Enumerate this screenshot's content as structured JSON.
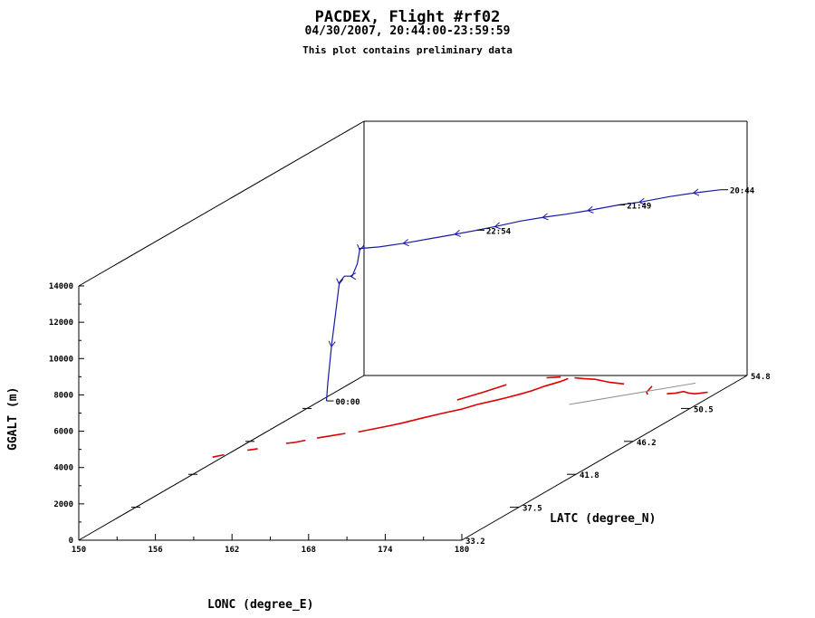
{
  "header": {
    "title": "PACDEX, Flight #rf02",
    "subtitle": "04/30/2007, 20:44:00-23:59:59",
    "note": "This plot contains preliminary data"
  },
  "colors": {
    "track": "#1a1aa6",
    "ground_track": "#dd0000",
    "grey_segment": "#909090",
    "axes": "#000000"
  },
  "chart_data": {
    "type": "3d-line",
    "axes": {
      "x": {
        "label": "LONC (degree_E)",
        "range": [
          150,
          180
        ],
        "ticks": [
          "150",
          "156",
          "162",
          "168",
          "174",
          "180"
        ]
      },
      "y": {
        "label": "LATC (degree_N)",
        "range": [
          33.2,
          54.8
        ],
        "ticks": [
          "33.2",
          "37.5",
          "41.8",
          "46.2",
          "50.5",
          "54.8"
        ]
      },
      "z": {
        "label": "GGALT (m)",
        "range": [
          0,
          14000
        ],
        "ticks": [
          "0",
          "2000",
          "4000",
          "6000",
          "8000",
          "10000",
          "12000",
          "14000"
        ]
      }
    },
    "track": [
      {
        "lon": 179.6,
        "lat": 53.2,
        "alt": 10900
      },
      {
        "lon": 178.0,
        "lat": 52.8,
        "alt": 10900
      },
      {
        "lon": 176.5,
        "lat": 52.3,
        "alt": 10900
      },
      {
        "lon": 175.0,
        "lat": 51.6,
        "alt": 10900
      },
      {
        "lon": 173.6,
        "lat": 51.2,
        "alt": 10900
      },
      {
        "lon": 172.1,
        "lat": 50.5,
        "alt": 10900
      },
      {
        "lon": 170.8,
        "lat": 50.0,
        "alt": 10900
      },
      {
        "lon": 169.5,
        "lat": 49.6,
        "alt": 10900
      },
      {
        "lon": 168.2,
        "lat": 49.1,
        "alt": 10900
      },
      {
        "lon": 167.0,
        "lat": 48.4,
        "alt": 10900
      },
      {
        "lon": 166.0,
        "lat": 47.9,
        "alt": 10900
      },
      {
        "lon": 164.9,
        "lat": 47.4,
        "alt": 10900
      },
      {
        "lon": 163.5,
        "lat": 46.8,
        "alt": 10900
      },
      {
        "lon": 162.1,
        "lat": 46.2,
        "alt": 10900
      },
      {
        "lon": 160.6,
        "lat": 45.7,
        "alt": 10900
      },
      {
        "lon": 159.3,
        "lat": 45.5,
        "alt": 10900
      },
      {
        "lon": 159.2,
        "lat": 45.4,
        "alt": 10100
      },
      {
        "lon": 159.0,
        "lat": 45.2,
        "alt": 9500
      },
      {
        "lon": 158.4,
        "lat": 45.2,
        "alt": 9500
      },
      {
        "lon": 158.1,
        "lat": 45.1,
        "alt": 9200
      },
      {
        "lon": 157.9,
        "lat": 45.0,
        "alt": 7500
      },
      {
        "lon": 157.6,
        "lat": 45.0,
        "alt": 5800
      },
      {
        "lon": 157.3,
        "lat": 45.0,
        "alt": 3700
      },
      {
        "lon": 157.4,
        "lat": 44.8,
        "alt": 2800
      }
    ],
    "time_labels": [
      {
        "text": "20:44",
        "lon": 179.6,
        "lat": 53.2,
        "alt": 10900
      },
      {
        "text": "21:49",
        "lon": 173.6,
        "lat": 51.2,
        "alt": 10900
      },
      {
        "text": "22:54",
        "lon": 166.0,
        "lat": 47.9,
        "alt": 10900
      },
      {
        "text": "00:00",
        "lon": 157.4,
        "lat": 44.8,
        "alt": 2800
      }
    ],
    "ground_track": [
      [
        [
          179.2,
          52.6
        ],
        [
          178.4,
          52.4
        ],
        [
          177.8,
          52.5
        ],
        [
          177.2,
          52.7
        ],
        [
          176.8,
          52.5
        ],
        [
          176.2,
          52.4
        ]
      ],
      [
        [
          174.8,
          52.3
        ],
        [
          174.4,
          52.6
        ],
        [
          174.0,
          53.4
        ]
      ],
      [
        [
          171.5,
          53.7
        ],
        [
          170.2,
          53.9
        ],
        [
          168.6,
          54.3
        ],
        [
          167.6,
          54.4
        ],
        [
          166.8,
          54.5
        ]
      ],
      [
        [
          165.6,
          54.6
        ],
        [
          164.6,
          54.5
        ]
      ],
      [
        [
          166.4,
          54.4
        ],
        [
          166.2,
          54.0
        ],
        [
          165.6,
          53.4
        ],
        [
          165.2,
          52.8
        ],
        [
          164.8,
          52.4
        ],
        [
          164.2,
          51.9
        ],
        [
          163.6,
          51.5
        ],
        [
          162.8,
          51.0
        ],
        [
          162.2,
          50.4
        ],
        [
          161.2,
          49.8
        ],
        [
          160.3,
          49.2
        ],
        [
          159.5,
          48.6
        ],
        [
          158.8,
          48.2
        ],
        [
          158.0,
          47.8
        ],
        [
          157.2,
          47.4
        ]
      ],
      [
        [
          162.4,
          53.6
        ],
        [
          161.6,
          52.6
        ],
        [
          160.6,
          51.6
        ]
      ],
      [
        [
          156.4,
          47.2
        ],
        [
          155.6,
          46.9
        ],
        [
          154.8,
          46.6
        ]
      ],
      [
        [
          154.2,
          46.3
        ],
        [
          153.6,
          46.0
        ],
        [
          153.1,
          45.9
        ]
      ],
      [
        [
          151.6,
          45.2
        ],
        [
          151.0,
          45.0
        ]
      ],
      [
        [
          149.8,
          44.4
        ],
        [
          149.2,
          44.1
        ]
      ]
    ],
    "grey_segment": [
      [
        177.0,
        53.8
      ],
      [
        170.0,
        51.0
      ]
    ]
  }
}
